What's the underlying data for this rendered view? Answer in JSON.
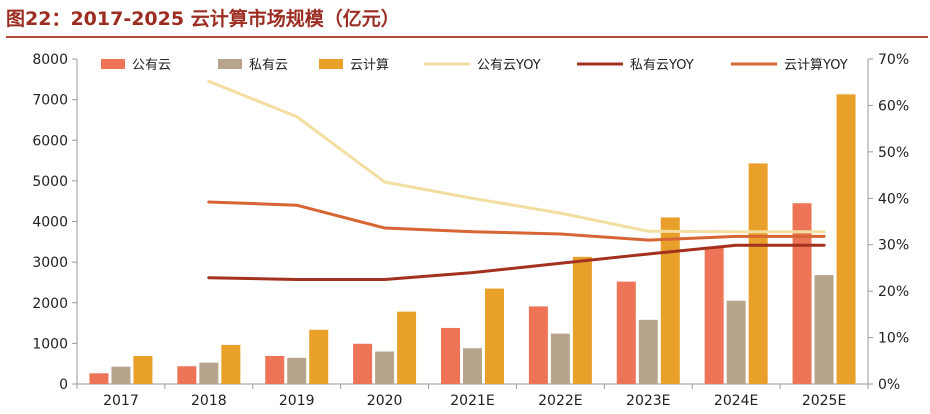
{
  "title": "图22：2017-2025 云计算市场规模（亿元）",
  "colors": {
    "public_bar": "#ed7456",
    "private_bar": "#b7a48c",
    "cloud_bar": "#e8a02a",
    "public_yoy": "#f2dea0",
    "private_yoy": "#a3311f",
    "cloud_yoy": "#d76634",
    "title": "#9b2d22"
  },
  "chart_data": {
    "type": "bar",
    "categories": [
      "2017",
      "2018",
      "2019",
      "2020",
      "2021E",
      "2022E",
      "2023E",
      "2024E",
      "2025E"
    ],
    "series": [
      {
        "name": "公有云",
        "kind": "bar",
        "axis": "left",
        "values": [
          264,
          437,
          690,
          990,
          1380,
          1910,
          2520,
          3380,
          4450
        ]
      },
      {
        "name": "私有云",
        "kind": "bar",
        "axis": "left",
        "values": [
          426,
          525,
          645,
          800,
          880,
          1240,
          1580,
          2050,
          2680
        ]
      },
      {
        "name": "云计算",
        "kind": "bar",
        "axis": "left",
        "values": [
          690,
          962,
          1335,
          1781,
          2350,
          3130,
          4100,
          5430,
          7130
        ]
      },
      {
        "name": "公有云YOY",
        "kind": "line",
        "axis": "right",
        "values": [
          null,
          65.2,
          57.6,
          43.5,
          40.0,
          36.8,
          32.9,
          32.8,
          32.8
        ]
      },
      {
        "name": "私有云YOY",
        "kind": "line",
        "axis": "right",
        "values": [
          null,
          22.9,
          22.5,
          22.5,
          24.0,
          26.0,
          28.0,
          29.9,
          29.9
        ]
      },
      {
        "name": "云计算YOY",
        "kind": "line",
        "axis": "right",
        "values": [
          null,
          39.2,
          38.5,
          33.6,
          32.8,
          32.3,
          31.0,
          31.8,
          31.8
        ]
      }
    ],
    "y_left": {
      "min": 0,
      "max": 8000,
      "ticks": [
        "0",
        "1000",
        "2000",
        "3000",
        "4000",
        "5000",
        "6000",
        "7000",
        "8000"
      ]
    },
    "y_right": {
      "min": 0,
      "max": 70,
      "ticks": [
        "0%",
        "10%",
        "20%",
        "30%",
        "40%",
        "50%",
        "60%",
        "70%"
      ]
    },
    "legend_position": "top",
    "grid": false
  }
}
